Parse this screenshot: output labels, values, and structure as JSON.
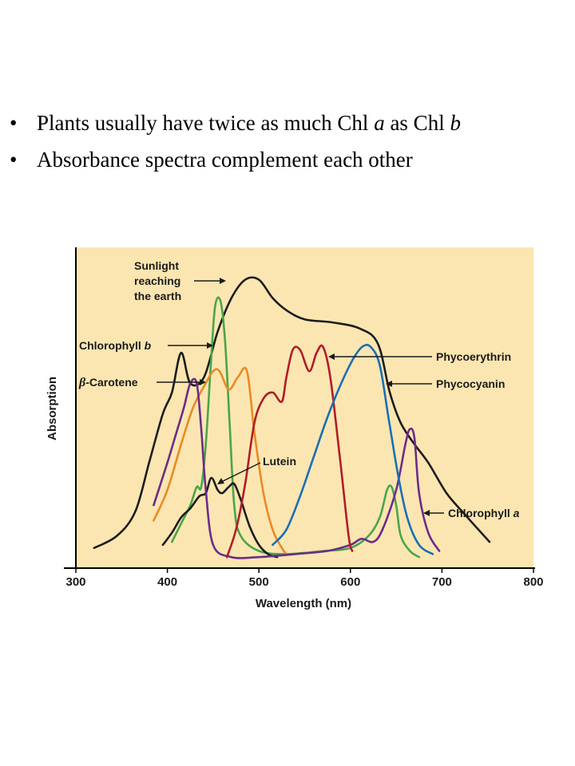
{
  "bullets": [
    {
      "pre": "Plants usually have twice as much Chl ",
      "a": "a",
      "mid": "  as Chl ",
      "b": "b"
    },
    {
      "text": "Absorbance spectra complement each other"
    }
  ],
  "chart_data": {
    "type": "line",
    "xlabel": "Wavelength (nm)",
    "ylabel": "Absorption",
    "xlim": [
      300,
      800
    ],
    "ylim": [
      0,
      100
    ],
    "xticks": [
      "300",
      "400",
      "500",
      "600",
      "700",
      "800"
    ],
    "background": "#fbe6b1",
    "series": [
      {
        "name": "Sunlight reaching the earth",
        "color": "#1c1c1c",
        "points": [
          [
            320,
            4
          ],
          [
            345,
            8
          ],
          [
            365,
            16
          ],
          [
            380,
            32
          ],
          [
            395,
            48
          ],
          [
            405,
            55
          ],
          [
            415,
            68
          ],
          [
            425,
            58
          ],
          [
            440,
            60
          ],
          [
            455,
            75
          ],
          [
            470,
            86
          ],
          [
            485,
            92
          ],
          [
            500,
            92
          ],
          [
            515,
            86
          ],
          [
            530,
            82
          ],
          [
            550,
            79
          ],
          [
            580,
            78
          ],
          [
            610,
            76
          ],
          [
            630,
            71
          ],
          [
            643,
            55
          ],
          [
            655,
            45
          ],
          [
            670,
            38
          ],
          [
            685,
            32
          ],
          [
            705,
            22
          ],
          [
            725,
            15
          ],
          [
            752,
            6
          ]
        ]
      },
      {
        "name": "Chlorophyll b",
        "color": "#4aa54a",
        "points": [
          [
            405,
            6
          ],
          [
            415,
            12
          ],
          [
            425,
            18
          ],
          [
            432,
            24
          ],
          [
            437,
            24
          ],
          [
            442,
            38
          ],
          [
            447,
            62
          ],
          [
            452,
            83
          ],
          [
            458,
            85
          ],
          [
            463,
            72
          ],
          [
            468,
            45
          ],
          [
            473,
            18
          ],
          [
            480,
            8
          ],
          [
            500,
            3
          ],
          [
            530,
            2
          ],
          [
            570,
            3
          ],
          [
            600,
            4
          ],
          [
            620,
            8
          ],
          [
            632,
            14
          ],
          [
            640,
            23
          ],
          [
            645,
            24
          ],
          [
            650,
            18
          ],
          [
            655,
            8
          ],
          [
            665,
            3
          ],
          [
            675,
            1
          ]
        ]
      },
      {
        "name": "β-Carotene",
        "color": "#e98a24",
        "points": [
          [
            385,
            13
          ],
          [
            400,
            23
          ],
          [
            415,
            38
          ],
          [
            428,
            50
          ],
          [
            440,
            57
          ],
          [
            450,
            62
          ],
          [
            457,
            62
          ],
          [
            467,
            56
          ],
          [
            477,
            60
          ],
          [
            487,
            62
          ],
          [
            495,
            42
          ],
          [
            505,
            22
          ],
          [
            515,
            10
          ],
          [
            525,
            4
          ],
          [
            530,
            2
          ]
        ]
      },
      {
        "name": "Lutein",
        "color": "#1c1c1c",
        "points": [
          [
            395,
            5
          ],
          [
            405,
            9
          ],
          [
            415,
            14
          ],
          [
            425,
            17
          ],
          [
            435,
            21
          ],
          [
            442,
            22
          ],
          [
            448,
            27
          ],
          [
            455,
            23
          ],
          [
            460,
            22
          ],
          [
            467,
            24
          ],
          [
            473,
            25
          ],
          [
            480,
            20
          ],
          [
            490,
            11
          ],
          [
            500,
            5
          ],
          [
            510,
            2
          ],
          [
            520,
            1
          ]
        ]
      },
      {
        "name": "Chlorophyll a",
        "color": "#6b2c8a",
        "points": [
          [
            385,
            18
          ],
          [
            400,
            32
          ],
          [
            410,
            42
          ],
          [
            418,
            50
          ],
          [
            425,
            58
          ],
          [
            432,
            58
          ],
          [
            437,
            43
          ],
          [
            442,
            23
          ],
          [
            450,
            5
          ],
          [
            470,
            1
          ],
          [
            500,
            1
          ],
          [
            540,
            2
          ],
          [
            575,
            3
          ],
          [
            600,
            5
          ],
          [
            612,
            7
          ],
          [
            625,
            6
          ],
          [
            635,
            10
          ],
          [
            650,
            23
          ],
          [
            660,
            38
          ],
          [
            665,
            43
          ],
          [
            670,
            40
          ],
          [
            675,
            22
          ],
          [
            685,
            9
          ],
          [
            697,
            3
          ]
        ]
      },
      {
        "name": "Phycoerythrin",
        "color": "#b01c2a",
        "points": [
          [
            465,
            1
          ],
          [
            475,
            10
          ],
          [
            485,
            25
          ],
          [
            495,
            45
          ],
          [
            505,
            53
          ],
          [
            515,
            55
          ],
          [
            525,
            52
          ],
          [
            530,
            60
          ],
          [
            537,
            69
          ],
          [
            545,
            69
          ],
          [
            555,
            62
          ],
          [
            563,
            68
          ],
          [
            570,
            70
          ],
          [
            578,
            60
          ],
          [
            588,
            35
          ],
          [
            598,
            8
          ],
          [
            602,
            3
          ]
        ]
      },
      {
        "name": "Phycocyanin",
        "color": "#1a6fb5",
        "points": [
          [
            515,
            5
          ],
          [
            530,
            10
          ],
          [
            545,
            21
          ],
          [
            560,
            34
          ],
          [
            575,
            47
          ],
          [
            590,
            58
          ],
          [
            603,
            66
          ],
          [
            613,
            70
          ],
          [
            622,
            70
          ],
          [
            632,
            64
          ],
          [
            642,
            46
          ],
          [
            652,
            28
          ],
          [
            662,
            14
          ],
          [
            675,
            5
          ],
          [
            690,
            2
          ]
        ]
      }
    ],
    "annotations": [
      "Sunlight reaching the earth",
      "Chlorophyll b",
      "β-Carotene",
      "Lutein",
      "Phycoerythrin",
      "Phycocyanin",
      "Chlorophyll a"
    ]
  }
}
